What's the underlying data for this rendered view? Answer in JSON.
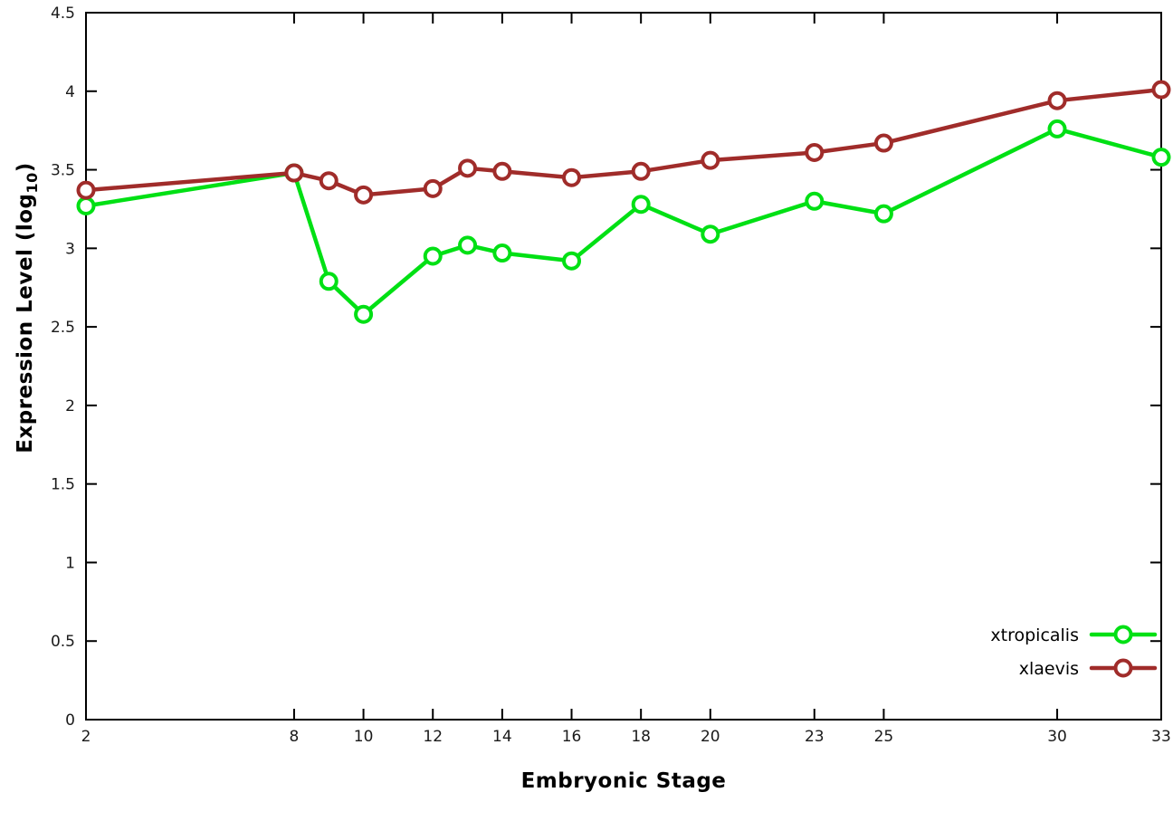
{
  "figure": {
    "background": "#ffffff",
    "xlabel": "Embryonic Stage",
    "ylabel_prefix": "Expression Level (log",
    "ylabel_sub": "10",
    "ylabel_suffix": ")"
  },
  "chart_data": {
    "type": "line",
    "title": "",
    "xlabel": "Embryonic Stage",
    "ylabel": "Expression Level (log10)",
    "x": [
      2,
      8,
      9,
      10,
      12,
      13,
      14,
      16,
      18,
      20,
      23,
      25,
      30,
      33
    ],
    "series": [
      {
        "name": "xtropicalis",
        "color": "#00e014",
        "marker": "open-circle",
        "values": [
          3.27,
          3.48,
          2.79,
          2.58,
          2.95,
          3.02,
          2.97,
          2.92,
          3.28,
          3.09,
          3.3,
          3.22,
          3.76,
          3.58
        ]
      },
      {
        "name": "xlaevis",
        "color": "#a02c2a",
        "marker": "open-circle",
        "values": [
          3.37,
          3.48,
          3.43,
          3.34,
          3.38,
          3.51,
          3.49,
          3.45,
          3.49,
          3.56,
          3.61,
          3.67,
          3.94,
          4.01
        ]
      }
    ],
    "xlim": [
      2,
      33
    ],
    "ylim": [
      0,
      4.5
    ],
    "x_ticks": [
      2,
      8,
      10,
      12,
      14,
      16,
      18,
      20,
      23,
      25,
      30,
      33
    ],
    "y_ticks": [
      0,
      0.5,
      1,
      1.5,
      2,
      2.5,
      3,
      3.5,
      4,
      4.5
    ],
    "grid": false,
    "legend_position": "bottom-right",
    "border_color": "#000000",
    "tick_label_color": "#1a1a1a"
  }
}
